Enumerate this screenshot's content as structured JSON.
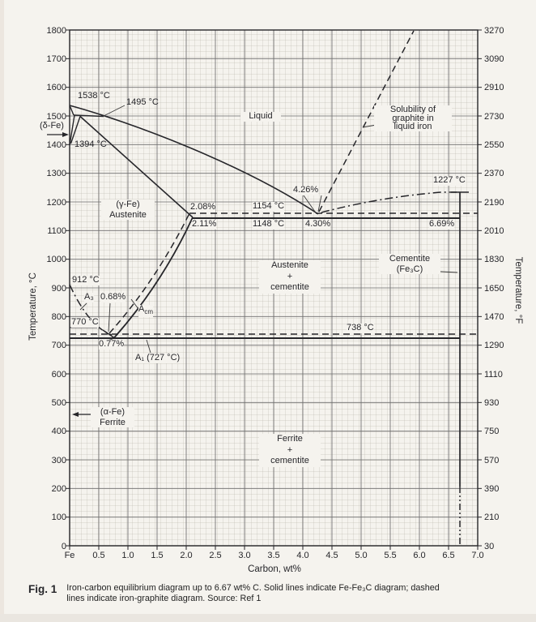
{
  "figure": {
    "tag": "Fig. 1",
    "caption": "Iron-carbon equilibrium diagram up to 6.67 wt% C. Solid lines indicate Fe-Fe₃C diagram; dashed lines indicate iron-graphite diagram. Source: Ref 1"
  },
  "axes": {
    "x_title": "Carbon, wt%",
    "y_left_title": "Temperature, °C",
    "y_right_title": "Temperature, °F",
    "x_ticks": [
      "Fe",
      "0.5",
      "1.0",
      "1.5",
      "2.0",
      "2.5",
      "3.0",
      "3.5",
      "4.0",
      "4.5",
      "5.0",
      "5.5",
      "6.0",
      "6.5",
      "7.0"
    ],
    "y_left_ticks": [
      "1800",
      "1700",
      "1600",
      "1500",
      "1400",
      "1300",
      "1200",
      "1100",
      "1000",
      "900",
      "800",
      "700",
      "600",
      "500",
      "400",
      "300",
      "200",
      "100",
      "0"
    ],
    "y_right_ticks": [
      "3270",
      "3090",
      "2910",
      "2730",
      "2550",
      "2370",
      "2190",
      "2010",
      "1830",
      "1650",
      "1470",
      "1290",
      "1110",
      "930",
      "750",
      "570",
      "390",
      "210",
      "30"
    ]
  },
  "labels": {
    "t1538": "1538 °C",
    "t1495": "1495 °C",
    "t1394": "1394 °C",
    "t912": "912 °C",
    "t770": "770 °C",
    "t738": "738 °C",
    "t1154": "1154 °C",
    "t1148": "1148 °C",
    "t1227": "1227 °C",
    "p208": "2.08%",
    "p211": "2.11%",
    "p426": "4.26%",
    "p430": "4.30%",
    "p669": "6.69%",
    "p068": "0.68%",
    "p077": "0.77%",
    "a1": "A₁ (727 °C)",
    "a3": "A₃",
    "a_cm_base": "A",
    "a_cm_sub": "cm",
    "delta_fe": "(δ-Fe)",
    "liquid": "Liquid",
    "gamma_austenite": "(γ-Fe)\nAustenite",
    "austenite_cementite": "Austenite\n+\ncementite",
    "cementite": "Cementite\n(Fe₃C)",
    "ferrite_cementite": "Ferrite\n+\ncementite",
    "alpha_ferrite": "(α-Fe)\nFerrite",
    "solubility": "Solubility of\ngraphite in\nliquid iron"
  },
  "chart_data": {
    "type": "line",
    "title": "Iron-carbon equilibrium diagram up to 6.67 wt% C",
    "xlabel": "Carbon, wt%",
    "ylabel_left": "Temperature, °C",
    "ylabel_right": "Temperature, °F",
    "xlim": [
      0,
      7.0
    ],
    "ylim_left_C": [
      0,
      1800
    ],
    "ylim_right_F": [
      30,
      3270
    ],
    "grid": true,
    "series": [
      {
        "name": "Liquidus (Fe-Fe₃C)",
        "style": "solid",
        "points": [
          [
            0,
            1538
          ],
          [
            0.53,
            1495
          ],
          [
            1.0,
            1460
          ],
          [
            2.0,
            1380
          ],
          [
            3.0,
            1285
          ],
          [
            4.0,
            1180
          ],
          [
            4.3,
            1148
          ]
        ]
      },
      {
        "name": "Peritectic line 1495 °C",
        "style": "solid",
        "points": [
          [
            0.09,
            1495
          ],
          [
            0.53,
            1495
          ]
        ]
      },
      {
        "name": "Delta solidus",
        "style": "solid",
        "points": [
          [
            0,
            1538
          ],
          [
            0.09,
            1495
          ]
        ]
      },
      {
        "name": "Delta/gamma boundary (left)",
        "style": "solid",
        "points": [
          [
            0,
            1394
          ],
          [
            0.09,
            1495
          ]
        ]
      },
      {
        "name": "Delta/gamma boundary (right)",
        "style": "solid",
        "points": [
          [
            0,
            1394
          ],
          [
            0.17,
            1495
          ]
        ]
      },
      {
        "name": "Austenite solidus",
        "style": "solid",
        "points": [
          [
            0.17,
            1495
          ],
          [
            2.11,
            1148
          ]
        ]
      },
      {
        "name": "Eutectic line 1148 °C",
        "style": "solid",
        "points": [
          [
            2.11,
            1148
          ],
          [
            6.69,
            1148
          ]
        ]
      },
      {
        "name": "Acm austenite/cementite solvus",
        "style": "solid",
        "points": [
          [
            0.77,
            727
          ],
          [
            1.5,
            1000
          ],
          [
            2.11,
            1148
          ]
        ]
      },
      {
        "name": "A1 eutectoid line 727 °C",
        "style": "solid",
        "points": [
          [
            0,
            727
          ],
          [
            6.69,
            727
          ]
        ]
      },
      {
        "name": "A3 austenite/ferrite boundary",
        "style": "dash-dot",
        "points": [
          [
            0,
            912
          ],
          [
            0.3,
            830
          ],
          [
            0.5,
            775
          ],
          [
            0.77,
            727
          ]
        ]
      },
      {
        "name": "Curie line 770 °C",
        "style": "solid",
        "points": [
          [
            0,
            770
          ],
          [
            0.5,
            770
          ]
        ]
      },
      {
        "name": "Cementite composition line 6.69% C",
        "style": "solid",
        "points": [
          [
            6.69,
            1227
          ],
          [
            6.69,
            0
          ]
        ]
      },
      {
        "name": "Graphite eutectic line 1154 °C",
        "style": "dashed",
        "points": [
          [
            2.08,
            1154
          ],
          [
            7.0,
            1154
          ]
        ]
      },
      {
        "name": "Graphite eutectoid line 738 °C",
        "style": "dashed",
        "points": [
          [
            0,
            738
          ],
          [
            7.0,
            738
          ]
        ]
      },
      {
        "name": "Graphite Acm",
        "style": "dashed",
        "points": [
          [
            0.68,
            738
          ],
          [
            2.08,
            1154
          ]
        ]
      },
      {
        "name": "Solubility of graphite in liquid iron",
        "style": "dashed",
        "points": [
          [
            4.26,
            1154
          ],
          [
            5.9,
            1800
          ]
        ]
      },
      {
        "name": "Fe₃C liquidus",
        "style": "dash-dot",
        "points": [
          [
            4.35,
            1152
          ],
          [
            5.0,
            1190
          ],
          [
            6.0,
            1218
          ],
          [
            6.69,
            1227
          ]
        ]
      }
    ],
    "key_points": [
      {
        "label": "1538 °C",
        "carbon_wt_pct": 0,
        "temp_C": 1538
      },
      {
        "label": "1495 °C peritectic",
        "carbon_wt_pct": 0.17,
        "temp_C": 1495
      },
      {
        "label": "1394 °C",
        "carbon_wt_pct": 0,
        "temp_C": 1394
      },
      {
        "label": "912 °C",
        "carbon_wt_pct": 0,
        "temp_C": 912
      },
      {
        "label": "770 °C Curie",
        "carbon_wt_pct": 0,
        "temp_C": 770
      },
      {
        "label": "Eutectic Fe-Fe₃C 4.30%",
        "carbon_wt_pct": 4.3,
        "temp_C": 1148
      },
      {
        "label": "Eutectic Fe-graphite 4.26%",
        "carbon_wt_pct": 4.26,
        "temp_C": 1154
      },
      {
        "label": "Max C in austenite (Fe₃C) 2.11%",
        "carbon_wt_pct": 2.11,
        "temp_C": 1148
      },
      {
        "label": "Max C in austenite (graphite) 2.08%",
        "carbon_wt_pct": 2.08,
        "temp_C": 1154
      },
      {
        "label": "Eutectoid Fe-Fe₃C 0.77%",
        "carbon_wt_pct": 0.77,
        "temp_C": 727
      },
      {
        "label": "Eutectoid Fe-graphite 0.68%",
        "carbon_wt_pct": 0.68,
        "temp_C": 738
      },
      {
        "label": "Cementite melting 6.69%",
        "carbon_wt_pct": 6.69,
        "temp_C": 1227
      }
    ]
  }
}
